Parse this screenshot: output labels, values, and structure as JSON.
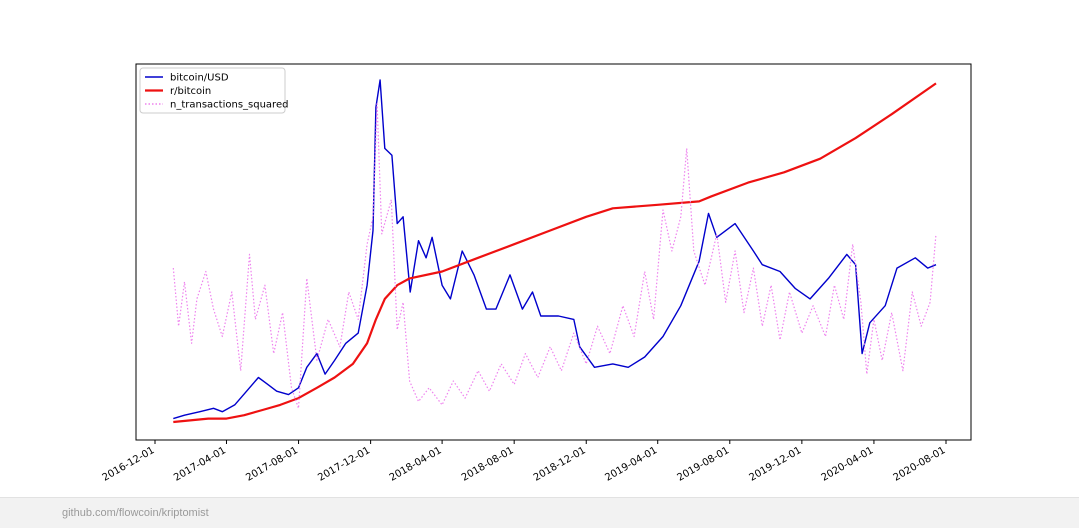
{
  "chart_data": {
    "type": "line",
    "title": "",
    "xlabel": "",
    "ylabel": "",
    "xlim": [
      "2016-12-01",
      "2020-08-01"
    ],
    "x_ticks": [
      "2016-12-01",
      "2017-04-01",
      "2017-08-01",
      "2017-12-01",
      "2018-04-01",
      "2018-08-01",
      "2018-12-01",
      "2019-04-01",
      "2019-08-01",
      "2019-12-01",
      "2020-04-01",
      "2020-08-01"
    ],
    "y_axis_ticks": "none",
    "ylim": [
      0,
      1
    ],
    "grid": false,
    "legend_position": "top-left",
    "series": [
      {
        "name": "bitcoin/USD",
        "color": "#0000cc",
        "style": "solid",
        "points": [
          [
            "2017-01-01",
            0.01
          ],
          [
            "2017-01-20",
            0.02
          ],
          [
            "2017-02-15",
            0.03
          ],
          [
            "2017-03-10",
            0.04
          ],
          [
            "2017-03-25",
            0.03
          ],
          [
            "2017-04-15",
            0.05
          ],
          [
            "2017-05-05",
            0.09
          ],
          [
            "2017-05-25",
            0.13
          ],
          [
            "2017-06-10",
            0.11
          ],
          [
            "2017-06-25",
            0.09
          ],
          [
            "2017-07-15",
            0.08
          ],
          [
            "2017-08-01",
            0.1
          ],
          [
            "2017-08-15",
            0.16
          ],
          [
            "2017-09-01",
            0.2
          ],
          [
            "2017-09-15",
            0.14
          ],
          [
            "2017-10-01",
            0.18
          ],
          [
            "2017-10-20",
            0.23
          ],
          [
            "2017-11-10",
            0.26
          ],
          [
            "2017-11-25",
            0.4
          ],
          [
            "2017-12-05",
            0.56
          ],
          [
            "2017-12-10",
            0.92
          ],
          [
            "2017-12-17",
            1.0
          ],
          [
            "2017-12-25",
            0.8
          ],
          [
            "2018-01-06",
            0.78
          ],
          [
            "2018-01-15",
            0.58
          ],
          [
            "2018-01-25",
            0.6
          ],
          [
            "2018-02-06",
            0.38
          ],
          [
            "2018-02-20",
            0.53
          ],
          [
            "2018-03-05",
            0.48
          ],
          [
            "2018-03-15",
            0.54
          ],
          [
            "2018-04-01",
            0.4
          ],
          [
            "2018-04-15",
            0.36
          ],
          [
            "2018-05-05",
            0.5
          ],
          [
            "2018-05-25",
            0.43
          ],
          [
            "2018-06-15",
            0.33
          ],
          [
            "2018-07-01",
            0.33
          ],
          [
            "2018-07-25",
            0.43
          ],
          [
            "2018-08-15",
            0.33
          ],
          [
            "2018-09-01",
            0.38
          ],
          [
            "2018-09-15",
            0.31
          ],
          [
            "2018-10-15",
            0.31
          ],
          [
            "2018-11-10",
            0.3
          ],
          [
            "2018-11-20",
            0.22
          ],
          [
            "2018-12-15",
            0.16
          ],
          [
            "2019-01-15",
            0.17
          ],
          [
            "2019-02-10",
            0.16
          ],
          [
            "2019-03-10",
            0.19
          ],
          [
            "2019-04-10",
            0.25
          ],
          [
            "2019-05-10",
            0.34
          ],
          [
            "2019-06-10",
            0.47
          ],
          [
            "2019-06-26",
            0.61
          ],
          [
            "2019-07-10",
            0.54
          ],
          [
            "2019-08-10",
            0.58
          ],
          [
            "2019-09-10",
            0.5
          ],
          [
            "2019-09-25",
            0.46
          ],
          [
            "2019-10-25",
            0.44
          ],
          [
            "2019-11-20",
            0.39
          ],
          [
            "2019-12-15",
            0.36
          ],
          [
            "2020-01-15",
            0.42
          ],
          [
            "2020-02-15",
            0.49
          ],
          [
            "2020-03-01",
            0.46
          ],
          [
            "2020-03-12",
            0.2
          ],
          [
            "2020-03-25",
            0.29
          ],
          [
            "2020-04-20",
            0.34
          ],
          [
            "2020-05-10",
            0.45
          ],
          [
            "2020-06-10",
            0.48
          ],
          [
            "2020-07-01",
            0.45
          ],
          [
            "2020-07-15",
            0.46
          ]
        ]
      },
      {
        "name": "r/bitcoin",
        "color": "#ee1111",
        "style": "solid",
        "points": [
          [
            "2017-01-01",
            0.0
          ],
          [
            "2017-03-01",
            0.01
          ],
          [
            "2017-04-01",
            0.01
          ],
          [
            "2017-05-01",
            0.02
          ],
          [
            "2017-06-01",
            0.035
          ],
          [
            "2017-07-01",
            0.05
          ],
          [
            "2017-08-01",
            0.07
          ],
          [
            "2017-09-01",
            0.1
          ],
          [
            "2017-10-01",
            0.13
          ],
          [
            "2017-11-01",
            0.17
          ],
          [
            "2017-11-25",
            0.23
          ],
          [
            "2017-12-10",
            0.3
          ],
          [
            "2017-12-25",
            0.36
          ],
          [
            "2018-01-15",
            0.4
          ],
          [
            "2018-02-05",
            0.42
          ],
          [
            "2018-04-01",
            0.44
          ],
          [
            "2018-06-01",
            0.48
          ],
          [
            "2018-08-01",
            0.52
          ],
          [
            "2018-10-01",
            0.56
          ],
          [
            "2018-12-01",
            0.6
          ],
          [
            "2019-01-15",
            0.625
          ],
          [
            "2019-04-01",
            0.635
          ],
          [
            "2019-06-10",
            0.645
          ],
          [
            "2019-07-01",
            0.66
          ],
          [
            "2019-09-01",
            0.7
          ],
          [
            "2019-11-01",
            0.73
          ],
          [
            "2020-01-01",
            0.77
          ],
          [
            "2020-03-01",
            0.83
          ],
          [
            "2020-05-01",
            0.9
          ],
          [
            "2020-07-15",
            0.99
          ]
        ]
      },
      {
        "name": "n_transactions_squared",
        "color": "#ee82ee",
        "style": "dotted",
        "points": [
          [
            "2017-01-01",
            0.45
          ],
          [
            "2017-01-10",
            0.28
          ],
          [
            "2017-01-20",
            0.41
          ],
          [
            "2017-02-01",
            0.23
          ],
          [
            "2017-02-10",
            0.36
          ],
          [
            "2017-02-25",
            0.44
          ],
          [
            "2017-03-10",
            0.33
          ],
          [
            "2017-03-25",
            0.25
          ],
          [
            "2017-04-10",
            0.38
          ],
          [
            "2017-04-25",
            0.15
          ],
          [
            "2017-05-10",
            0.49
          ],
          [
            "2017-05-20",
            0.3
          ],
          [
            "2017-06-05",
            0.4
          ],
          [
            "2017-06-20",
            0.2
          ],
          [
            "2017-07-05",
            0.32
          ],
          [
            "2017-07-20",
            0.1
          ],
          [
            "2017-08-01",
            0.04
          ],
          [
            "2017-08-15",
            0.42
          ],
          [
            "2017-09-01",
            0.18
          ],
          [
            "2017-09-20",
            0.3
          ],
          [
            "2017-10-10",
            0.22
          ],
          [
            "2017-10-25",
            0.38
          ],
          [
            "2017-11-10",
            0.3
          ],
          [
            "2017-11-25",
            0.52
          ],
          [
            "2017-12-05",
            0.6
          ],
          [
            "2017-12-12",
            0.93
          ],
          [
            "2017-12-20",
            0.55
          ],
          [
            "2018-01-05",
            0.65
          ],
          [
            "2018-01-15",
            0.27
          ],
          [
            "2018-01-25",
            0.35
          ],
          [
            "2018-02-05",
            0.12
          ],
          [
            "2018-02-20",
            0.06
          ],
          [
            "2018-03-10",
            0.1
          ],
          [
            "2018-04-01",
            0.05
          ],
          [
            "2018-04-20",
            0.12
          ],
          [
            "2018-05-10",
            0.07
          ],
          [
            "2018-06-01",
            0.15
          ],
          [
            "2018-06-20",
            0.09
          ],
          [
            "2018-07-10",
            0.17
          ],
          [
            "2018-08-01",
            0.11
          ],
          [
            "2018-08-20",
            0.2
          ],
          [
            "2018-09-10",
            0.13
          ],
          [
            "2018-10-01",
            0.22
          ],
          [
            "2018-10-20",
            0.15
          ],
          [
            "2018-11-10",
            0.26
          ],
          [
            "2018-12-01",
            0.17
          ],
          [
            "2018-12-20",
            0.28
          ],
          [
            "2019-01-10",
            0.2
          ],
          [
            "2019-02-01",
            0.34
          ],
          [
            "2019-02-20",
            0.25
          ],
          [
            "2019-03-10",
            0.44
          ],
          [
            "2019-03-25",
            0.3
          ],
          [
            "2019-04-10",
            0.62
          ],
          [
            "2019-04-25",
            0.5
          ],
          [
            "2019-05-10",
            0.6
          ],
          [
            "2019-05-20",
            0.8
          ],
          [
            "2019-06-01",
            0.5
          ],
          [
            "2019-06-20",
            0.4
          ],
          [
            "2019-07-10",
            0.55
          ],
          [
            "2019-07-25",
            0.35
          ],
          [
            "2019-08-10",
            0.5
          ],
          [
            "2019-08-25",
            0.32
          ],
          [
            "2019-09-10",
            0.45
          ],
          [
            "2019-09-25",
            0.28
          ],
          [
            "2019-10-10",
            0.4
          ],
          [
            "2019-10-25",
            0.24
          ],
          [
            "2019-11-10",
            0.38
          ],
          [
            "2019-12-01",
            0.26
          ],
          [
            "2019-12-20",
            0.34
          ],
          [
            "2020-01-10",
            0.25
          ],
          [
            "2020-01-25",
            0.4
          ],
          [
            "2020-02-10",
            0.3
          ],
          [
            "2020-02-25",
            0.52
          ],
          [
            "2020-03-10",
            0.35
          ],
          [
            "2020-03-20",
            0.14
          ],
          [
            "2020-04-01",
            0.3
          ],
          [
            "2020-04-15",
            0.18
          ],
          [
            "2020-05-01",
            0.32
          ],
          [
            "2020-05-20",
            0.15
          ],
          [
            "2020-06-05",
            0.38
          ],
          [
            "2020-06-20",
            0.28
          ],
          [
            "2020-07-05",
            0.35
          ],
          [
            "2020-07-15",
            0.55
          ]
        ]
      }
    ]
  },
  "footer": {
    "link_text": "github.com/flowcoin/kriptomist"
  }
}
